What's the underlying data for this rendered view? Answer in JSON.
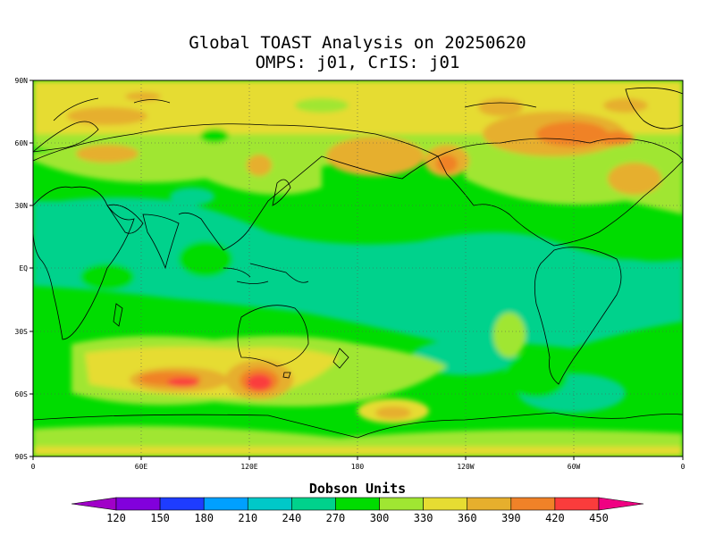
{
  "title_line1": "Global TOAST Analysis on 20250620",
  "title_line2": "OMPS: j01, CrIS: j01",
  "lat_labels": [
    "90N",
    "60N",
    "30N",
    "EQ",
    "30S",
    "60S",
    "90S"
  ],
  "lon_labels": [
    "0",
    "60E",
    "120E",
    "180",
    "120W",
    "60W",
    "0"
  ],
  "colorbar": {
    "title": "Dobson Units",
    "ticks": [
      "120",
      "150",
      "180",
      "210",
      "240",
      "270",
      "300",
      "330",
      "360",
      "390",
      "420",
      "450"
    ],
    "colors": [
      "#a000c8",
      "#8200dc",
      "#1e3cff",
      "#00a0ff",
      "#00c8c8",
      "#00d28c",
      "#00dc00",
      "#a0e632",
      "#e6dc32",
      "#e6af2d",
      "#f08228",
      "#fa3c3c",
      "#f00082"
    ]
  },
  "map": {
    "lon_range": [
      0,
      360
    ],
    "lat_range": [
      -90,
      90
    ],
    "background_level": "#00dc00"
  }
}
